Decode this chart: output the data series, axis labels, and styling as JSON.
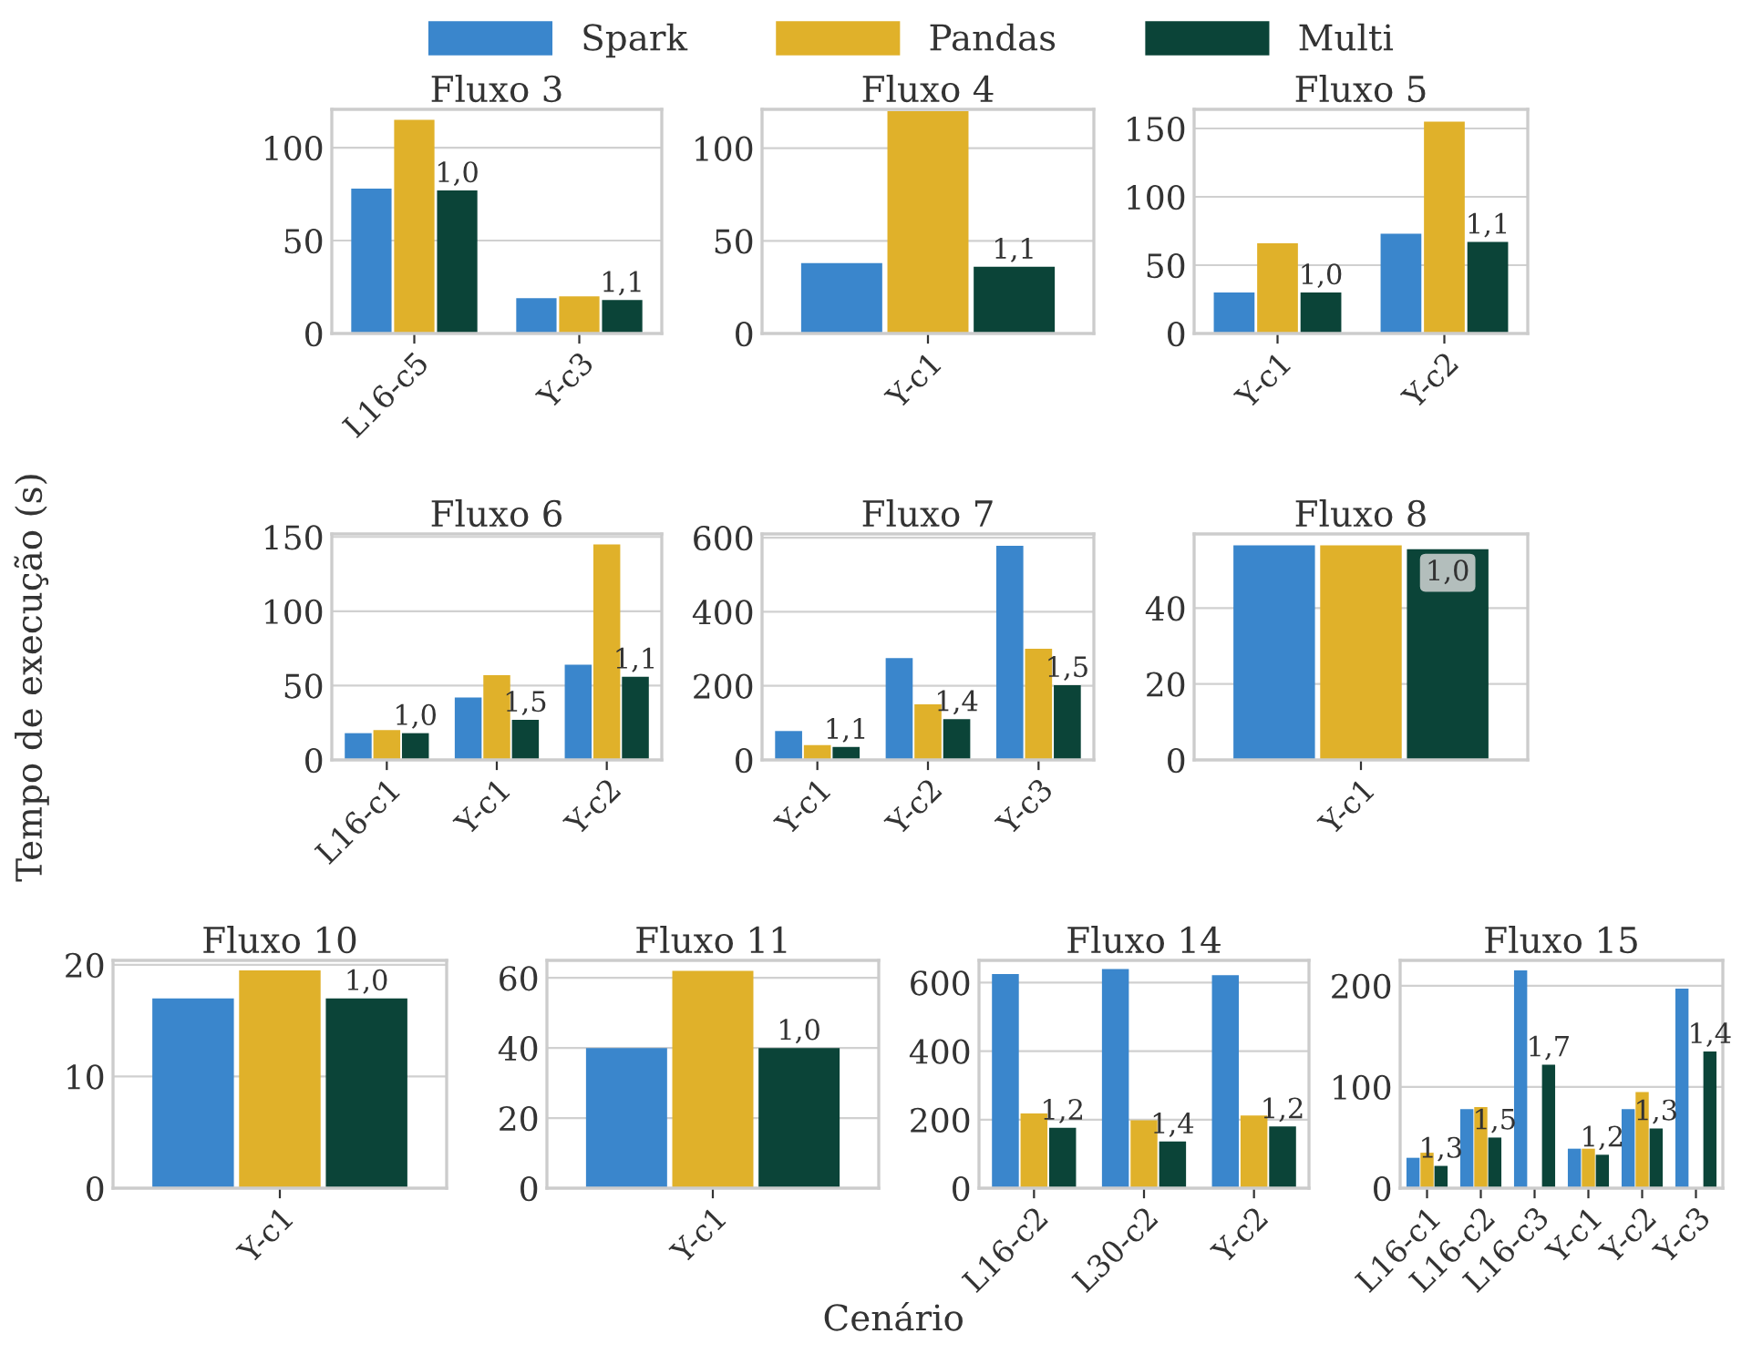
{
  "chart_data": [
    {
      "type": "bar",
      "title": "Fluxo 3",
      "ylabel": "Tempo de execução (s)",
      "xlabel": "Cenário",
      "legend": "top",
      "grid": "y",
      "categories": [
        "L16-c5",
        "Y-c3"
      ],
      "ylim": [
        0,
        120.6
      ],
      "yticks": [
        0,
        50,
        100
      ],
      "series": [
        {
          "name": "Spark",
          "color": "#3a86cc",
          "values": [
            78,
            19
          ]
        },
        {
          "name": "Pandas",
          "color": "#e0b12a",
          "values": [
            115,
            20
          ]
        },
        {
          "name": "Multi",
          "color": "#0b4438",
          "values": [
            77,
            18
          ]
        }
      ],
      "annotations": [
        "1,0",
        "1,1"
      ]
    },
    {
      "type": "bar",
      "title": "Fluxo 4",
      "grid": "y",
      "categories": [
        "Y-c1"
      ],
      "ylim": [
        0,
        121
      ],
      "yticks": [
        0,
        50,
        100
      ],
      "series": [
        {
          "color": "#3a86cc",
          "values": [
            38
          ]
        },
        {
          "color": "#e0b12a",
          "values": [
            120
          ]
        },
        {
          "color": "#0b4438",
          "values": [
            36
          ]
        }
      ],
      "annotations": [
        "1,1"
      ]
    },
    {
      "type": "bar",
      "title": "Fluxo 5",
      "grid": "y",
      "categories": [
        "Y-c1",
        "Y-c2"
      ],
      "ylim": [
        0,
        164
      ],
      "yticks": [
        0,
        50,
        100,
        150
      ],
      "series": [
        {
          "color": "#3a86cc",
          "values": [
            30,
            73
          ]
        },
        {
          "color": "#e0b12a",
          "values": [
            66,
            155
          ]
        },
        {
          "color": "#0b4438",
          "values": [
            30,
            67
          ]
        }
      ],
      "annotations": [
        "1,0",
        "1,1"
      ]
    },
    {
      "type": "bar",
      "title": "Fluxo 6",
      "grid": "y",
      "categories": [
        "L16-c1",
        "Y-c1",
        "Y-c2"
      ],
      "ylim": [
        0,
        152
      ],
      "yticks": [
        0,
        50,
        100,
        150
      ],
      "series": [
        {
          "color": "#3a86cc",
          "values": [
            18,
            42,
            64
          ]
        },
        {
          "color": "#e0b12a",
          "values": [
            20,
            57,
            145
          ]
        },
        {
          "color": "#0b4438",
          "values": [
            18,
            27,
            56
          ]
        }
      ],
      "annotations": [
        "1,0",
        "1,5",
        "1,1"
      ]
    },
    {
      "type": "bar",
      "title": "Fluxo 7",
      "grid": "y",
      "categories": [
        "Y-c1",
        "Y-c2",
        "Y-c3"
      ],
      "ylim": [
        0,
        610
      ],
      "yticks": [
        0,
        200,
        400,
        600
      ],
      "series": [
        {
          "color": "#3a86cc",
          "values": [
            78,
            275,
            578
          ]
        },
        {
          "color": "#e0b12a",
          "values": [
            40,
            150,
            300
          ]
        },
        {
          "color": "#0b4438",
          "values": [
            35,
            110,
            202
          ]
        }
      ],
      "annotations": [
        "1,1",
        "1,4",
        "1,5"
      ]
    },
    {
      "type": "bar",
      "title": "Fluxo 8",
      "grid": "y",
      "categories": [
        "Y-c1"
      ],
      "ylim": [
        0,
        59.5
      ],
      "yticks": [
        0,
        20,
        40
      ],
      "series": [
        {
          "color": "#3a86cc",
          "values": [
            56.5
          ]
        },
        {
          "color": "#e0b12a",
          "values": [
            56.5
          ]
        },
        {
          "color": "#0b4438",
          "values": [
            55.5
          ]
        }
      ],
      "annotations": [
        "1,0"
      ]
    },
    {
      "type": "bar",
      "title": "Fluxo 10",
      "grid": "y",
      "categories": [
        "Y-c1"
      ],
      "ylim": [
        0,
        20.4
      ],
      "yticks": [
        0,
        10,
        20
      ],
      "series": [
        {
          "color": "#3a86cc",
          "values": [
            17
          ]
        },
        {
          "color": "#e0b12a",
          "values": [
            19.5
          ]
        },
        {
          "color": "#0b4438",
          "values": [
            17
          ]
        }
      ],
      "annotations": [
        "1,0"
      ]
    },
    {
      "type": "bar",
      "title": "Fluxo 11",
      "grid": "y",
      "categories": [
        "Y-c1"
      ],
      "ylim": [
        0,
        65
      ],
      "yticks": [
        0,
        20,
        40,
        60
      ],
      "series": [
        {
          "color": "#3a86cc",
          "values": [
            40
          ]
        },
        {
          "color": "#e0b12a",
          "values": [
            62
          ]
        },
        {
          "color": "#0b4438",
          "values": [
            40
          ]
        }
      ],
      "annotations": [
        "1,0"
      ]
    },
    {
      "type": "bar",
      "title": "Fluxo 14",
      "grid": "y",
      "categories": [
        "L16-c2",
        "L30-c2",
        "Y-c2"
      ],
      "ylim": [
        0,
        665
      ],
      "yticks": [
        0,
        200,
        400,
        600
      ],
      "series": [
        {
          "color": "#3a86cc",
          "values": [
            625,
            640,
            622
          ]
        },
        {
          "color": "#e0b12a",
          "values": [
            218,
            198,
            212
          ]
        },
        {
          "color": "#0b4438",
          "values": [
            176,
            136,
            180
          ]
        }
      ],
      "annotations": [
        "1,2",
        "1,4",
        "1,2"
      ]
    },
    {
      "type": "bar",
      "title": "Fluxo 15",
      "grid": "y",
      "categories": [
        "L16-c1",
        "L16-c2",
        "L16-c3",
        "Y-c1",
        "Y-c2",
        "Y-c3"
      ],
      "ylim": [
        0,
        225
      ],
      "yticks": [
        0,
        100,
        200
      ],
      "series": [
        {
          "color": "#3a86cc",
          "values": [
            30,
            78,
            215,
            39,
            78,
            197
          ]
        },
        {
          "color": "#e0b12a",
          "values": [
            35,
            80,
            null,
            39,
            95,
            null
          ]
        },
        {
          "color": "#0b4438",
          "values": [
            22,
            50,
            122,
            33,
            59,
            135
          ]
        }
      ],
      "annotations": [
        "1,3",
        "1,5",
        "1,7",
        "1,2",
        "1,3",
        "1,4"
      ]
    }
  ]
}
